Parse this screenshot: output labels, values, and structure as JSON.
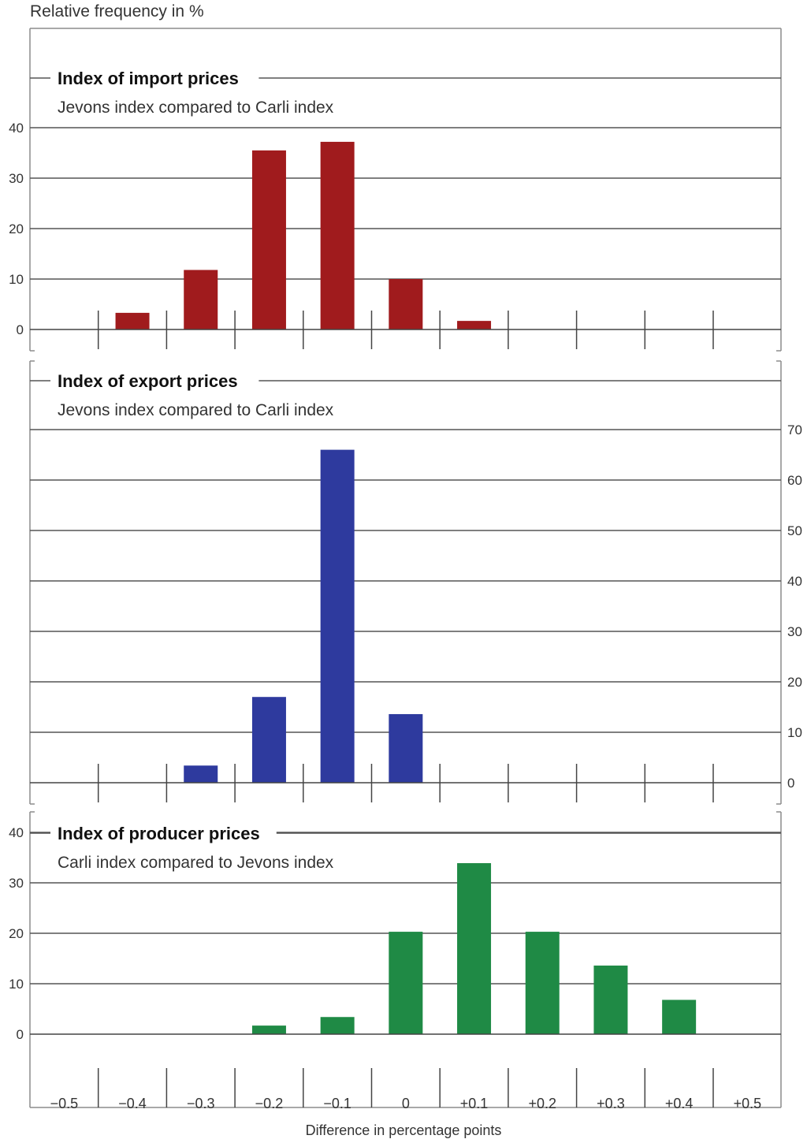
{
  "header": {
    "ylabel": "Relative frequency in %"
  },
  "xaxis": {
    "title": "Difference in percentage points"
  },
  "chart_data": [
    {
      "type": "bar",
      "title": "Index of import prices",
      "subtitle": "Jevons index compared to Carli index",
      "categories": [
        "−0.5",
        "−0.4",
        "−0.3",
        "−0.2",
        "−0.1",
        "0",
        "+0.1",
        "+0.2",
        "+0.3",
        "+0.4",
        "+0.5"
      ],
      "values": [
        0,
        3.3,
        11.8,
        35.5,
        37.2,
        10,
        1.7,
        0,
        0,
        0,
        0
      ],
      "ylim": [
        0,
        40
      ],
      "yticks": [
        0,
        10,
        20,
        30,
        40
      ],
      "yaxis_side": "left",
      "color": "#a01b1d",
      "grid": true
    },
    {
      "type": "bar",
      "title": "Index of export prices",
      "subtitle": "Jevons index compared to Carli index",
      "categories": [
        "−0.5",
        "−0.4",
        "−0.3",
        "−0.2",
        "−0.1",
        "0",
        "+0.1",
        "+0.2",
        "+0.3",
        "+0.4",
        "+0.5"
      ],
      "values": [
        0,
        0,
        3.4,
        17,
        66,
        13.6,
        0,
        0,
        0,
        0,
        0
      ],
      "ylim": [
        0,
        70
      ],
      "yticks": [
        0,
        10,
        20,
        30,
        40,
        50,
        60,
        70
      ],
      "yaxis_side": "right",
      "color": "#2e3a9e",
      "grid": true
    },
    {
      "type": "bar",
      "title": "Index of producer prices",
      "subtitle": "Carli index compared to Jevons index",
      "categories": [
        "−0.5",
        "−0.4",
        "−0.3",
        "−0.2",
        "−0.1",
        "0",
        "+0.1",
        "+0.2",
        "+0.3",
        "+0.4",
        "+0.5"
      ],
      "values": [
        0,
        0,
        0,
        1.7,
        3.4,
        20.3,
        33.9,
        20.3,
        13.6,
        6.8,
        0
      ],
      "ylim": [
        0,
        40
      ],
      "yticks": [
        0,
        10,
        20,
        30,
        40
      ],
      "yaxis_side": "left",
      "color": "#1f8a45",
      "grid": true
    }
  ],
  "colors": {
    "grid": "#555555",
    "frame": "#8c8c8c",
    "text": "#333333"
  }
}
